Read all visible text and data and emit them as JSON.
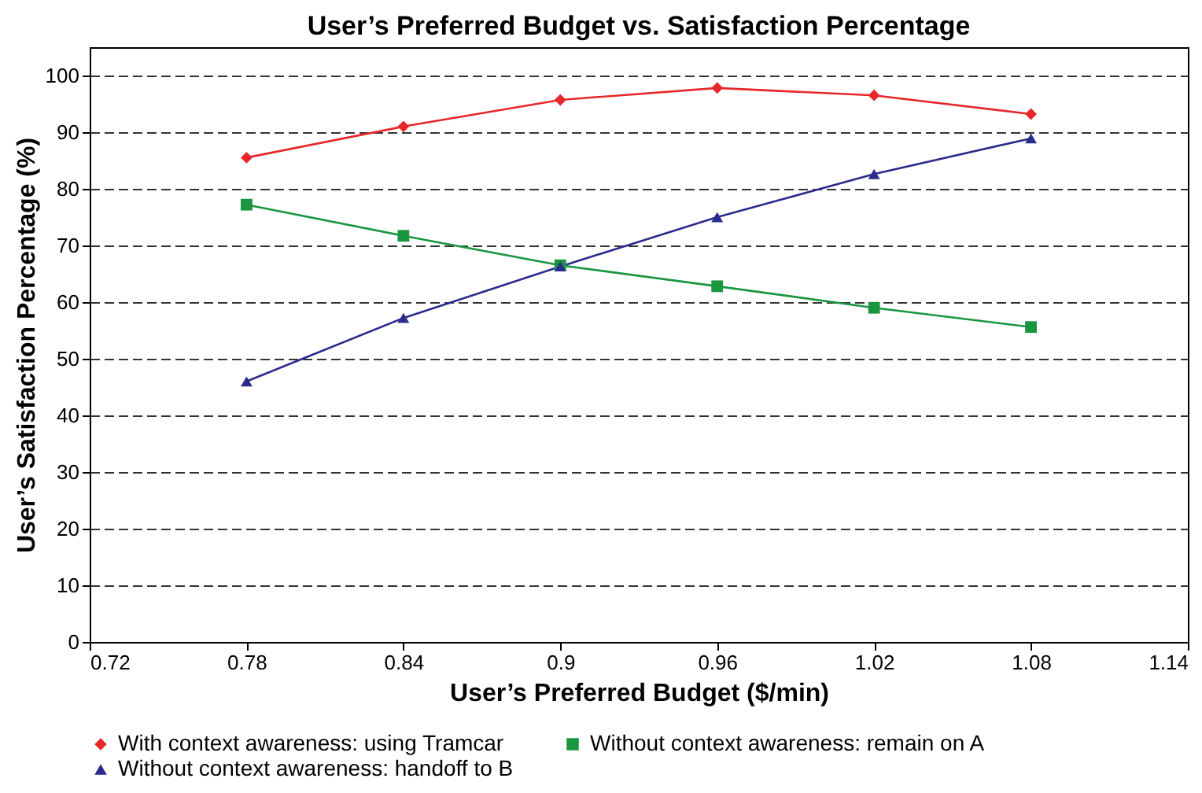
{
  "chart_data": {
    "type": "line",
    "title": "User’s Preferred Budget vs. Satisfaction Percentage",
    "xlabel": "User’s Preferred Budget ($/min)",
    "ylabel": "User’s Satisfaction Percentage (%)",
    "x": [
      0.78,
      0.84,
      0.9,
      0.96,
      1.02,
      1.08
    ],
    "series": [
      {
        "name": "With context awareness: using Tramcar",
        "color": "#e8272a",
        "marker": "diamond",
        "values": [
          85.5,
          91,
          95.7,
          97.8,
          96.5,
          93.2
        ]
      },
      {
        "name": "Without context awareness: remain on A",
        "color": "#1a9641",
        "marker": "square",
        "values": [
          77.2,
          71.7,
          66.5,
          62.8,
          59,
          55.6
        ]
      },
      {
        "name": "Without context awareness: handoff to B",
        "color": "#2b2b8c",
        "marker": "triangle",
        "values": [
          46,
          57.2,
          66.3,
          75,
          82.6,
          88.9
        ]
      }
    ],
    "xlim": [
      0.72,
      1.14
    ],
    "xticks": [
      0.72,
      0.78,
      0.84,
      0.9,
      0.96,
      1.02,
      1.08,
      1.14
    ],
    "ylim": [
      0,
      105
    ],
    "yticks": [
      0,
      10,
      20,
      30,
      40,
      50,
      60,
      70,
      80,
      90,
      100
    ],
    "grid": "y",
    "legend": "bottom",
    "line_style": "solid"
  }
}
